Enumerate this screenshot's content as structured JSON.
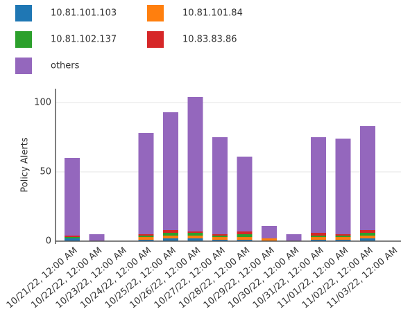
{
  "chart_data": {
    "type": "bar",
    "stacked": true,
    "y_label": "Policy Alerts",
    "categories": [
      "10/21/22, 12:00 AM",
      "10/22/22, 12:00 AM",
      "10/23/22, 12:00 AM",
      "10/24/22, 12:00 AM",
      "10/25/22, 12:00 AM",
      "10/26/22, 12:00 AM",
      "10/27/22, 12:00 AM",
      "10/28/22, 12:00 AM",
      "10/29/22, 12:00 AM",
      "10/30/22, 12:00 AM",
      "10/31/22, 12:00 AM",
      "11/01/22, 12:00 AM",
      "11/02/22, 12:00 AM",
      "11/03/22, 12:00 AM"
    ],
    "series": [
      {
        "name": "10.81.101.103",
        "color": "#1f77b4",
        "values": [
          2,
          0,
          0,
          1,
          2,
          2,
          1,
          1,
          0,
          0,
          1,
          1,
          2,
          0
        ]
      },
      {
        "name": "10.81.101.84",
        "color": "#ff7f0e",
        "values": [
          0,
          0,
          0,
          2,
          2,
          2,
          2,
          2,
          2,
          0,
          2,
          2,
          2,
          0
        ]
      },
      {
        "name": "10.81.102.137",
        "color": "#2ca02c",
        "values": [
          1,
          0,
          0,
          1,
          2,
          2,
          1,
          2,
          0,
          0,
          1,
          1,
          2,
          0
        ]
      },
      {
        "name": "10.83.83.86",
        "color": "#d62728",
        "values": [
          1,
          0,
          0,
          1,
          2,
          1,
          1,
          2,
          0,
          0,
          2,
          1,
          2,
          0
        ]
      },
      {
        "name": "others",
        "color": "#9467bd",
        "values": [
          56,
          5,
          0,
          73,
          85,
          97,
          70,
          54,
          9,
          5,
          69,
          69,
          75,
          0
        ]
      }
    ],
    "ylim": [
      -2,
      110
    ],
    "yticks": [
      0,
      50,
      100
    ],
    "grid": true
  }
}
